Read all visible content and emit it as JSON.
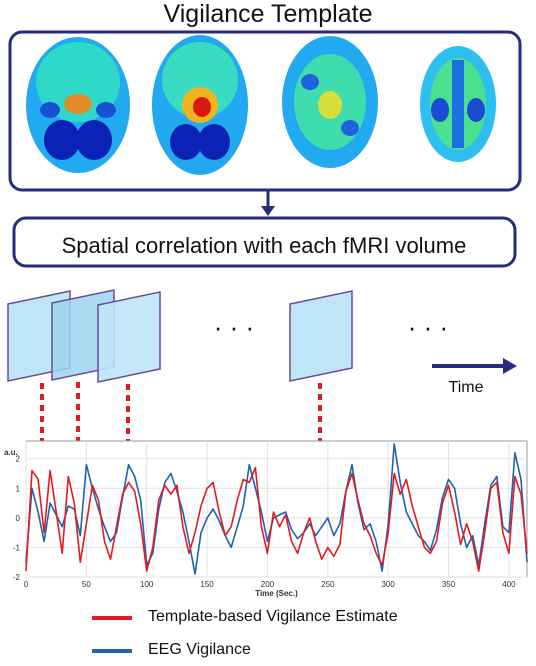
{
  "title": "Vigilance Template",
  "correlation_label": "Spatial correlation with each fMRI volume",
  "time_label": "Time",
  "ellipsis": "· · ·",
  "legend": [
    {
      "label": "Template-based Vigilance Estimate",
      "color": "#e11b22"
    },
    {
      "label": "EEG Vigilance",
      "color": "#1f63ad"
    }
  ],
  "colors": {
    "frame": "#262c7e",
    "arrow_red": "#e11b22",
    "slice_fill": "#bfe6f7",
    "slice_stroke": "#6b4a9e"
  },
  "chart_data": {
    "type": "line",
    "xlabel": "Time (Sec.)",
    "ylabel": "a.u.",
    "xlim": [
      0,
      415
    ],
    "ylim": [
      -2,
      2.6
    ],
    "xticks": [
      0,
      50,
      100,
      150,
      200,
      250,
      300,
      350,
      400
    ],
    "yticks": [
      -2,
      -1,
      0,
      1,
      2
    ],
    "grid": true,
    "series": [
      {
        "name": "Template-based Vigilance Estimate",
        "color": "#e11b22",
        "x": [
          0,
          5,
          10,
          15,
          20,
          25,
          30,
          35,
          40,
          45,
          50,
          55,
          60,
          65,
          70,
          75,
          80,
          85,
          90,
          95,
          100,
          105,
          110,
          115,
          120,
          125,
          130,
          135,
          140,
          145,
          150,
          155,
          160,
          165,
          170,
          175,
          180,
          185,
          190,
          195,
          200,
          205,
          210,
          215,
          220,
          225,
          230,
          235,
          240,
          245,
          250,
          255,
          260,
          265,
          270,
          275,
          280,
          285,
          290,
          295,
          300,
          305,
          310,
          315,
          320,
          325,
          330,
          335,
          340,
          345,
          350,
          355,
          360,
          365,
          370,
          375,
          380,
          385,
          390,
          395,
          400,
          405,
          410,
          415
        ],
        "y": [
          -1.8,
          1.6,
          1.3,
          -0.5,
          1.6,
          0.2,
          -1.2,
          1.4,
          0.5,
          -1.5,
          -0.2,
          1.1,
          0.6,
          -0.8,
          -1.4,
          -0.3,
          0.8,
          1.2,
          0.9,
          -0.2,
          -1.8,
          -1.0,
          0.6,
          1.1,
          0.8,
          1.1,
          -0.3,
          -1.2,
          -0.5,
          0.4,
          1.0,
          1.2,
          0.2,
          -0.6,
          -0.3,
          0.6,
          1.3,
          1.2,
          1.7,
          -0.3,
          -1.2,
          0.2,
          -0.3,
          0.1,
          -0.8,
          -1.2,
          -0.5,
          0.0,
          -0.8,
          -1.4,
          -1.0,
          -1.3,
          -0.9,
          0.9,
          1.5,
          0.6,
          -0.2,
          -0.6,
          -1.2,
          -1.6,
          -0.5,
          1.5,
          0.8,
          1.3,
          0.4,
          -0.3,
          -1.0,
          -1.2,
          -0.8,
          0.5,
          1.1,
          0.2,
          -0.9,
          -0.2,
          -0.8,
          -1.8,
          -0.5,
          1.0,
          1.2,
          -0.5,
          -1.2,
          1.4,
          0.8,
          -1.2
        ]
      },
      {
        "name": "EEG Vigilance",
        "color": "#1f63ad",
        "x": [
          0,
          5,
          10,
          15,
          20,
          25,
          30,
          35,
          40,
          45,
          50,
          55,
          60,
          65,
          70,
          75,
          80,
          85,
          90,
          95,
          100,
          105,
          110,
          115,
          120,
          125,
          130,
          135,
          140,
          145,
          150,
          155,
          160,
          165,
          170,
          175,
          180,
          185,
          190,
          195,
          200,
          205,
          210,
          215,
          220,
          225,
          230,
          235,
          240,
          245,
          250,
          255,
          260,
          265,
          270,
          275,
          280,
          285,
          290,
          295,
          300,
          305,
          310,
          315,
          320,
          325,
          330,
          335,
          340,
          345,
          350,
          355,
          360,
          365,
          370,
          375,
          380,
          385,
          390,
          395,
          400,
          405,
          410,
          415
        ],
        "y": [
          -1.5,
          1.0,
          0.2,
          -0.8,
          0.5,
          0.1,
          -0.3,
          0.4,
          0.3,
          -0.6,
          1.8,
          1.0,
          0.3,
          -0.3,
          -0.8,
          -0.5,
          0.7,
          1.8,
          1.4,
          0.6,
          -1.6,
          -1.2,
          0.3,
          1.2,
          1.5,
          0.9,
          0.2,
          -0.8,
          -1.9,
          -0.5,
          0.0,
          0.3,
          -0.1,
          -0.6,
          -1.0,
          -0.3,
          0.4,
          1.8,
          1.0,
          0.2,
          -0.8,
          0.0,
          0.1,
          0.2,
          -0.4,
          -0.7,
          -0.5,
          -0.2,
          -0.6,
          -0.3,
          0.0,
          -0.6,
          -0.2,
          0.9,
          1.8,
          0.5,
          -0.4,
          -0.2,
          -0.8,
          -1.8,
          -0.2,
          2.5,
          1.2,
          0.2,
          -0.2,
          -0.6,
          -0.8,
          -1.1,
          -0.4,
          0.7,
          1.3,
          1.0,
          -0.2,
          -1.0,
          -0.6,
          -1.6,
          -0.2,
          1.1,
          1.4,
          -0.3,
          -0.5,
          2.2,
          1.3,
          -1.5
        ]
      }
    ]
  }
}
